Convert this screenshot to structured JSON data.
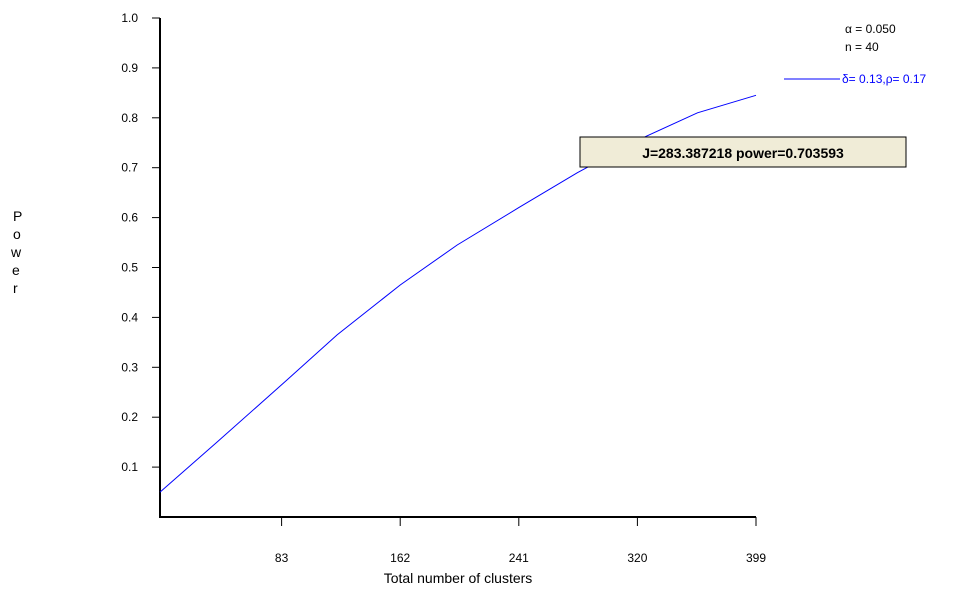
{
  "chart_data": {
    "type": "line",
    "title": "",
    "xlabel": "Total number of clusters",
    "ylabel": "Power",
    "xlim": [
      2,
      399
    ],
    "ylim": [
      0,
      1.0
    ],
    "x_ticks": [
      "83",
      "162",
      "241",
      "320",
      "399"
    ],
    "y_ticks": [
      "0.1",
      "0.2",
      "0.3",
      "0.4",
      "0.5",
      "0.6",
      "0.7",
      "0.8",
      "0.9",
      "1.0"
    ],
    "parameters": [
      "α = 0.050",
      "n = 40"
    ],
    "series": [
      {
        "name": "δ= 0.13,ρ= 0.17",
        "color": "#0000ff",
        "x": [
          2,
          40,
          83,
          120,
          162,
          200,
          241,
          280,
          320,
          360,
          399
        ],
        "y": [
          0.05,
          0.15,
          0.265,
          0.365,
          0.465,
          0.545,
          0.62,
          0.69,
          0.755,
          0.81,
          0.845
        ]
      }
    ],
    "annotation": "J=283.387218 power=0.703593",
    "legend_position": "top-right",
    "grid": false
  }
}
